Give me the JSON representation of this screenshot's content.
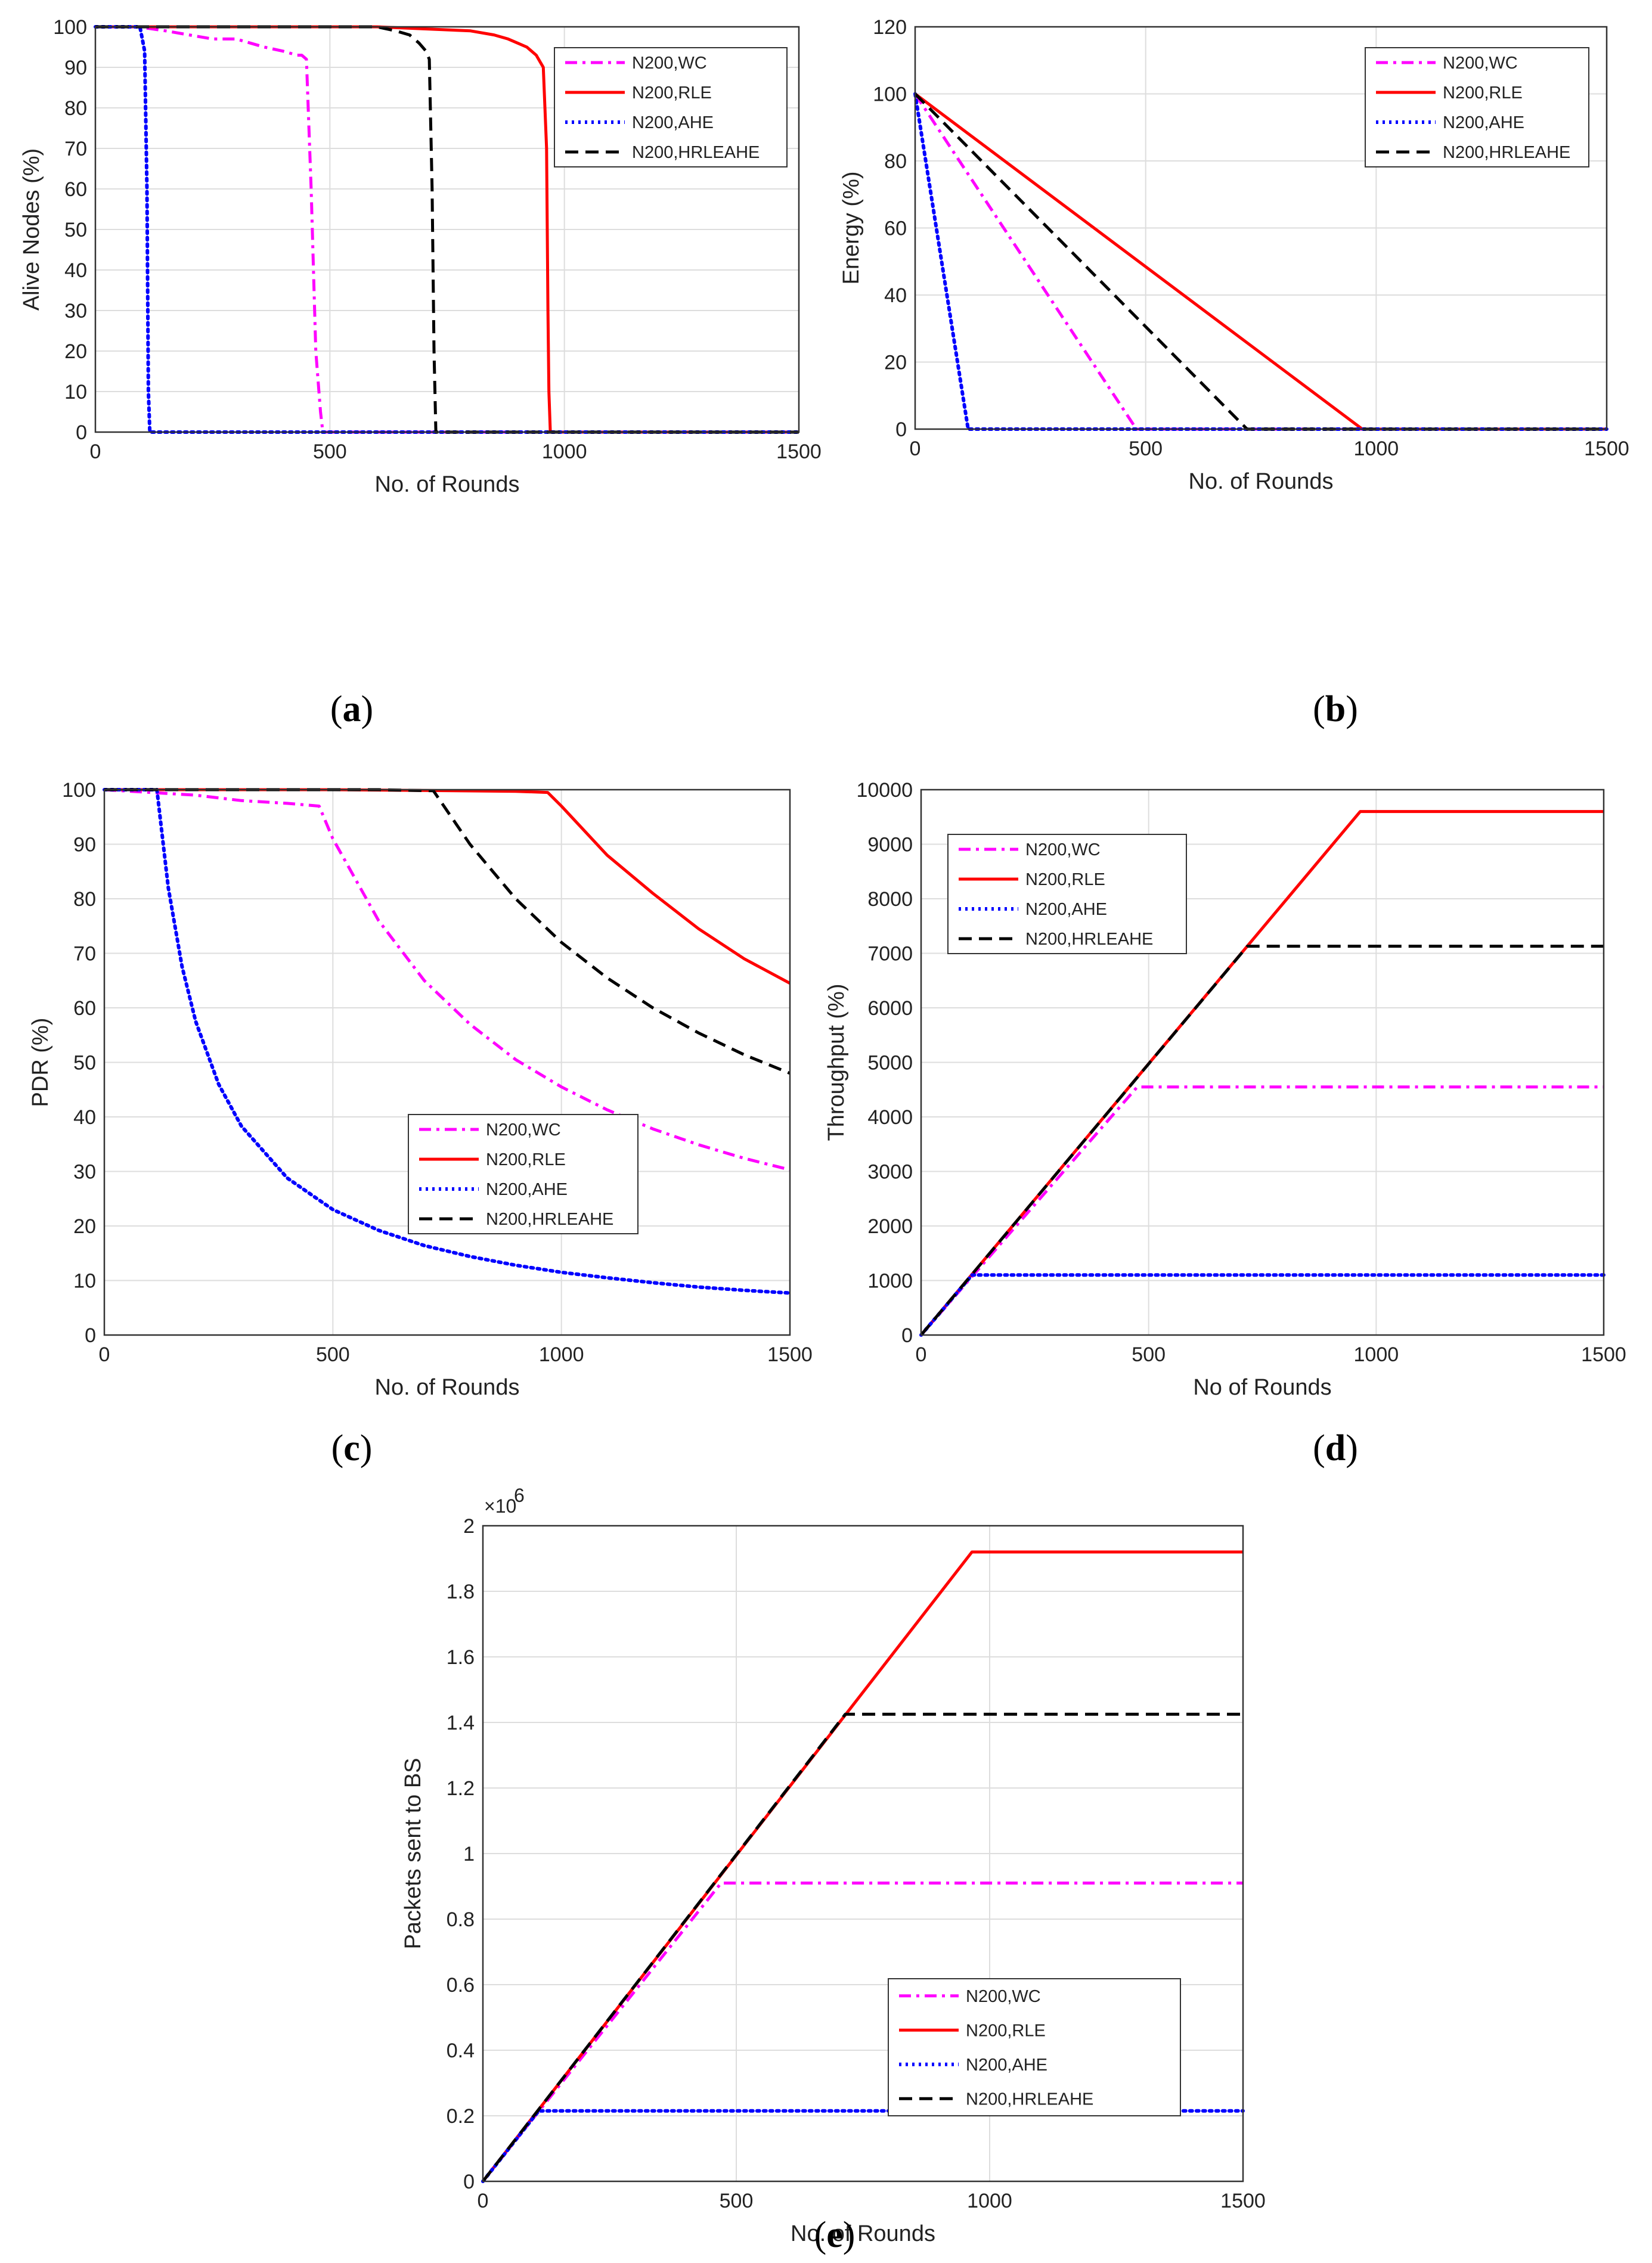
{
  "colors": {
    "wc": "#ff00ff",
    "rle": "#ff0000",
    "ahe": "#0000ff",
    "hrleahe": "#000000",
    "grid": "#dddddd",
    "axis": "#333333"
  },
  "legend_labels": [
    "N200,WC",
    "N200,RLE",
    "N200,AHE",
    "N200,HRLEAHE"
  ],
  "chart_data": [
    {
      "id": "a",
      "caption": "(a)",
      "type": "line",
      "title": "",
      "xlabel": "No. of Rounds",
      "ylabel": "Alive Nodes (%)",
      "xlim": [
        0,
        1500
      ],
      "ylim": [
        0,
        100
      ],
      "xticks": [
        "0",
        "500",
        "1000",
        "1500"
      ],
      "yticks": [
        "0",
        "10",
        "20",
        "30",
        "40",
        "50",
        "60",
        "70",
        "80",
        "90",
        "100"
      ],
      "grid": true,
      "legend": "top-right",
      "series": [
        {
          "name": "N200,WC",
          "style": "dashdot",
          "x": [
            0,
            90,
            150,
            200,
            250,
            300,
            330,
            360,
            400,
            430,
            440,
            450,
            460,
            470,
            480,
            485,
            1500
          ],
          "y": [
            100,
            100,
            99,
            98,
            97,
            97,
            96,
            95,
            94,
            93,
            93,
            92,
            60,
            20,
            5,
            0,
            0
          ]
        },
        {
          "name": "N200,RLE",
          "style": "solid",
          "x": [
            0,
            600,
            700,
            800,
            850,
            880,
            900,
            920,
            940,
            955,
            962,
            965,
            967,
            970,
            1500
          ],
          "y": [
            100,
            100,
            99.5,
            99,
            98,
            97,
            96,
            95,
            93,
            90,
            70,
            30,
            10,
            0,
            0
          ]
        },
        {
          "name": "N200,AHE",
          "style": "dotted",
          "x": [
            0,
            95,
            100,
            105,
            110,
            113,
            116,
            1500
          ],
          "y": [
            100,
            100,
            97,
            94,
            60,
            10,
            0,
            0
          ]
        },
        {
          "name": "N200,HRLEAHE",
          "style": "dashed",
          "x": [
            0,
            600,
            640,
            670,
            690,
            705,
            712,
            718,
            722,
            726,
            1500
          ],
          "y": [
            100,
            100,
            99,
            98,
            96,
            94,
            92,
            60,
            20,
            0,
            0
          ]
        }
      ]
    },
    {
      "id": "b",
      "caption": "(b)",
      "type": "line",
      "title": "",
      "xlabel": "No. of Rounds",
      "ylabel": "Energy (%)",
      "xlim": [
        0,
        1500
      ],
      "ylim": [
        0,
        120
      ],
      "xticks": [
        "0",
        "500",
        "1000",
        "1500"
      ],
      "yticks": [
        "0",
        "20",
        "40",
        "60",
        "80",
        "100",
        "120"
      ],
      "grid": true,
      "legend": "top-right",
      "series": [
        {
          "name": "N200,WC",
          "style": "dashdot",
          "x": [
            0,
            480,
            1500
          ],
          "y": [
            100,
            0,
            0
          ]
        },
        {
          "name": "N200,RLE",
          "style": "solid",
          "x": [
            0,
            970,
            1500
          ],
          "y": [
            100,
            0,
            0
          ]
        },
        {
          "name": "N200,AHE",
          "style": "dotted",
          "x": [
            0,
            115,
            1500
          ],
          "y": [
            100,
            0,
            0
          ]
        },
        {
          "name": "N200,HRLEAHE",
          "style": "dashed",
          "x": [
            0,
            720,
            1500
          ],
          "y": [
            100,
            0,
            0
          ]
        }
      ]
    },
    {
      "id": "c",
      "caption": "(c)",
      "type": "line",
      "title": "",
      "xlabel": "No. of Rounds",
      "ylabel": "PDR (%)",
      "xlim": [
        0,
        1500
      ],
      "ylim": [
        0,
        100
      ],
      "xticks": [
        "0",
        "500",
        "1000",
        "1500"
      ],
      "yticks": [
        "0",
        "10",
        "20",
        "30",
        "40",
        "50",
        "60",
        "70",
        "80",
        "90",
        "100"
      ],
      "grid": true,
      "legend": "center-right",
      "series": [
        {
          "name": "N200,WC",
          "style": "dashdot",
          "x": [
            0,
            100,
            200,
            300,
            400,
            470,
            500,
            600,
            700,
            800,
            900,
            1000,
            1100,
            1200,
            1300,
            1400,
            1500
          ],
          "y": [
            100,
            99.5,
            99,
            98,
            97.5,
            97,
            91,
            76,
            65,
            57,
            50.5,
            45.5,
            41.3,
            37.8,
            34.9,
            32.4,
            30.3
          ]
        },
        {
          "name": "N200,RLE",
          "style": "solid",
          "x": [
            0,
            500,
            900,
            970,
            1000,
            1100,
            1200,
            1300,
            1400,
            1500
          ],
          "y": [
            100,
            100,
            99.7,
            99.5,
            97,
            88,
            81,
            74.5,
            69,
            64.5
          ]
        },
        {
          "name": "N200,AHE",
          "style": "dotted",
          "x": [
            0,
            115,
            140,
            170,
            200,
            250,
            300,
            400,
            500,
            600,
            700,
            800,
            900,
            1000,
            1100,
            1200,
            1300,
            1400,
            1500
          ],
          "y": [
            100,
            100,
            82,
            67.6,
            57.5,
            46,
            38.3,
            28.8,
            23,
            19.2,
            16.4,
            14.4,
            12.8,
            11.5,
            10.5,
            9.6,
            8.8,
            8.2,
            7.7
          ]
        },
        {
          "name": "N200,HRLEAHE",
          "style": "dashed",
          "x": [
            0,
            600,
            720,
            800,
            900,
            1000,
            1100,
            1200,
            1300,
            1400,
            1500
          ],
          "y": [
            100,
            100,
            99.8,
            90,
            80,
            72,
            65.5,
            60,
            55.4,
            51.4,
            48
          ]
        }
      ]
    },
    {
      "id": "d",
      "caption": "(d)",
      "type": "line",
      "title": "",
      "xlabel": "No of Rounds",
      "ylabel": "Throughput (%)",
      "xlim": [
        0,
        1500
      ],
      "ylim": [
        0,
        10000
      ],
      "xticks": [
        "0",
        "500",
        "1000",
        "1500"
      ],
      "yticks": [
        "0",
        "1000",
        "2000",
        "3000",
        "4000",
        "5000",
        "6000",
        "7000",
        "8000",
        "9000",
        "10000"
      ],
      "grid": true,
      "legend": "top-left",
      "series": [
        {
          "name": "N200,WC",
          "style": "dashdot",
          "x": [
            0,
            475,
            1500
          ],
          "y": [
            0,
            4550,
            4550
          ]
        },
        {
          "name": "N200,RLE",
          "style": "solid",
          "x": [
            0,
            965,
            1500
          ],
          "y": [
            0,
            9600,
            9600
          ]
        },
        {
          "name": "N200,AHE",
          "style": "dotted",
          "x": [
            0,
            112,
            1500
          ],
          "y": [
            0,
            1100,
            1100
          ]
        },
        {
          "name": "N200,HRLEAHE",
          "style": "dashed",
          "x": [
            0,
            717,
            1500
          ],
          "y": [
            0,
            7130,
            7130
          ]
        }
      ]
    },
    {
      "id": "e",
      "caption": "(e)",
      "type": "line",
      "title": "",
      "xlabel": "No. of Rounds",
      "ylabel": "Packets sent to BS",
      "y_multiplier": "×10",
      "y_multiplier_exp": "6",
      "xlim": [
        0,
        1500
      ],
      "ylim": [
        0,
        2
      ],
      "xticks": [
        "0",
        "500",
        "1000",
        "1500"
      ],
      "yticks": [
        "0",
        "0.2",
        "0.4",
        "0.6",
        "0.8",
        "1",
        "1.2",
        "1.4",
        "1.6",
        "1.8",
        "2"
      ],
      "grid": true,
      "legend": "bottom-right",
      "series": [
        {
          "name": "N200,WC",
          "style": "dashdot",
          "x": [
            0,
            470,
            1500
          ],
          "y": [
            0,
            0.91,
            0.91
          ]
        },
        {
          "name": "N200,RLE",
          "style": "solid",
          "x": [
            0,
            965,
            1500
          ],
          "y": [
            0,
            1.92,
            1.92
          ]
        },
        {
          "name": "N200,AHE",
          "style": "dotted",
          "x": [
            0,
            110,
            1500
          ],
          "y": [
            0,
            0.215,
            0.215
          ]
        },
        {
          "name": "N200,HRLEAHE",
          "style": "dashed",
          "x": [
            0,
            715,
            1500
          ],
          "y": [
            0,
            1.425,
            1.425
          ]
        }
      ]
    }
  ]
}
